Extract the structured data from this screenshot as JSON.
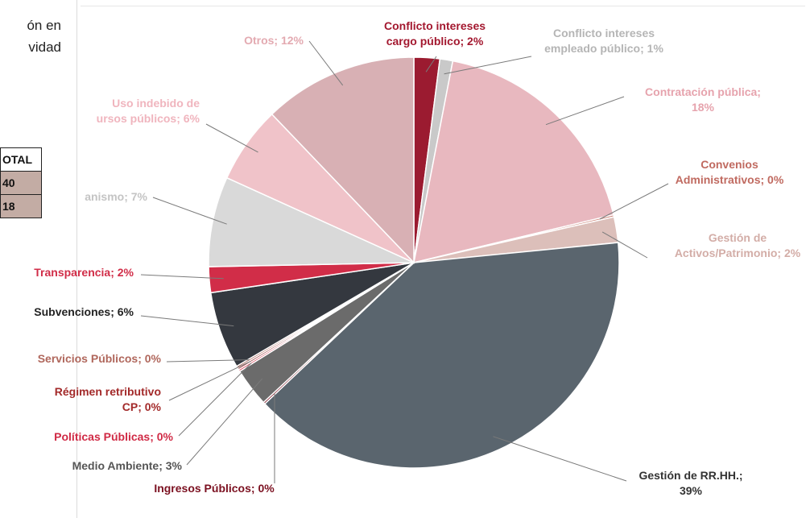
{
  "background_text": {
    "lines": [
      "ón en",
      "vidad"
    ]
  },
  "background_table": {
    "header": "OTAL",
    "rows": [
      "40",
      "18"
    ]
  },
  "chart_data": {
    "type": "pie",
    "title": "",
    "slices": [
      {
        "label": [
          "Conflicto intereses",
          "cargo público; 2%"
        ],
        "category": "Conflicto intereses cargo público",
        "value": 2,
        "color": "#9b1b30",
        "label_color": "#a3182f"
      },
      {
        "label": [
          "Conflicto intereses",
          "empleado público; 1%"
        ],
        "category": "Conflicto intereses empleado público",
        "value": 1,
        "color": "#c9c9c9",
        "label_color": "#b5b5b5"
      },
      {
        "label": [
          "Contratación pública;",
          "18%"
        ],
        "category": "Contratación pública",
        "value": 18,
        "color": "#e8b8bf",
        "label_color": "#e6a3ad"
      },
      {
        "label": [
          "Convenios",
          "Administrativos; 0%"
        ],
        "category": "Convenios Administrativos",
        "value": 0,
        "color": "#c97b6e",
        "label_color": "#c06a60"
      },
      {
        "label": [
          "Gestión de",
          "Activos/Patrimonio; 2%"
        ],
        "category": "Gestión de Activos/Patrimonio",
        "value": 2,
        "color": "#dcbfba",
        "label_color": "#d3ada7"
      },
      {
        "label": [
          "Gestión de RR.HH.;",
          "39%"
        ],
        "category": "Gestión de RR.HH.",
        "value": 39,
        "color": "#5a656e",
        "label_color": "#333333"
      },
      {
        "label": [
          "Ingresos Públicos; 0%"
        ],
        "category": "Ingresos Públicos",
        "value": 0,
        "color": "#7b1020",
        "label_color": "#7b1020"
      },
      {
        "label": [
          "Medio Ambiente; 3%"
        ],
        "category": "Medio Ambiente",
        "value": 3,
        "color": "#6b6b6b",
        "label_color": "#555555"
      },
      {
        "label": [
          "Políticas Públicas; 0%"
        ],
        "category": "Políticas Públicas",
        "value": 0,
        "color": "#d6334a",
        "label_color": "#d02a45"
      },
      {
        "label": [
          "Régimen retributivo",
          "CP; 0%"
        ],
        "category": "Régimen retributivo CP",
        "value": 0,
        "color": "#9e3a3a",
        "label_color": "#a32a2a"
      },
      {
        "label": [
          "Servicios Públicos; 0%"
        ],
        "category": "Servicios Públicos",
        "value": 0,
        "color": "#b06a5e",
        "label_color": "#b0675c"
      },
      {
        "label": [
          "Subvenciones; 6%"
        ],
        "category": "Subvenciones",
        "value": 6,
        "color": "#34383f",
        "label_color": "#222222"
      },
      {
        "label": [
          "Transparencia; 2%"
        ],
        "category": "Transparencia",
        "value": 2,
        "color": "#d12d48",
        "label_color": "#d12d48"
      },
      {
        "label": [
          "anismo; 7%"
        ],
        "category": "Urbanismo",
        "value": 7,
        "color": "#d9d9d9",
        "label_color": "#c4c4c4"
      },
      {
        "label": [
          "Uso indebido de",
          "ursos públicos; 6%"
        ],
        "category": "Uso indebido de recursos públicos",
        "value": 6,
        "color": "#f0c3c9",
        "label_color": "#f0b5be"
      },
      {
        "label": [
          "Otros; 12%"
        ],
        "category": "Otros",
        "value": 12,
        "color": "#d8b0b4",
        "label_color": "#e3aab1"
      }
    ]
  }
}
